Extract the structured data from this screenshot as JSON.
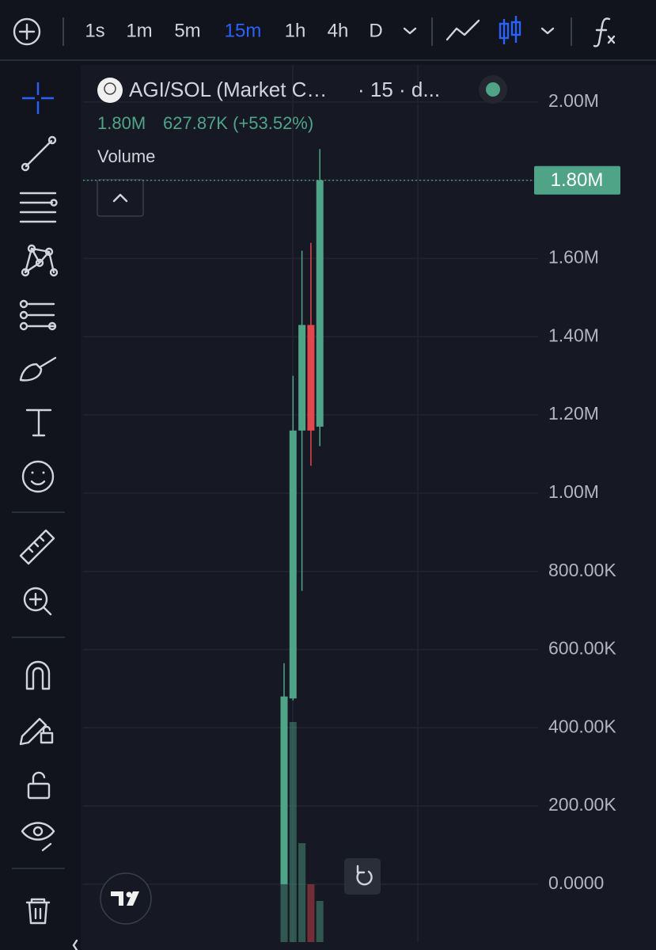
{
  "toolbar": {
    "intervals": [
      "1s",
      "1m",
      "5m",
      "15m",
      "1h",
      "4h",
      "D"
    ],
    "active": 3
  },
  "legend": {
    "symbol": "AGI/SOL (Market C…",
    "meta": "· 15 · d...",
    "price": "1.80M",
    "change": "627.87K (+53.52%)",
    "indicator": "Volume"
  },
  "chart_data": {
    "type": "candlestick",
    "categories": [
      null,
      null,
      null,
      null,
      null
    ],
    "open": [
      0,
      475000,
      1160000,
      1430000,
      1170000
    ],
    "high": [
      565000,
      1300000,
      1620000,
      1640000,
      1880000
    ],
    "low": [
      0,
      470000,
      750000,
      1070000,
      1120000
    ],
    "close": [
      480000,
      1160000,
      1430000,
      1160000,
      1800000
    ],
    "up_color": "#4fa487",
    "down_color": "#e2474b",
    "volume": [
      92,
      278,
      125,
      73,
      52
    ],
    "volume_ylim": [
      0,
      1108
    ],
    "ylim": [
      -148000,
      2095000
    ],
    "yticks": [
      {
        "value": 0,
        "label": "0.0000"
      },
      {
        "value": 200000,
        "label": "200.00K"
      },
      {
        "value": 400000,
        "label": "400.00K"
      },
      {
        "value": 600000,
        "label": "600.00K"
      },
      {
        "value": 800000,
        "label": "800.00K"
      },
      {
        "value": 1000000,
        "label": "1.00M"
      },
      {
        "value": 1200000,
        "label": "1.20M"
      },
      {
        "value": 1400000,
        "label": "1.40M"
      },
      {
        "value": 1600000,
        "label": "1.60M"
      },
      {
        "value": 1800000,
        "label": "1.80M"
      },
      {
        "value": 2000000,
        "label": "2.00M"
      }
    ],
    "last_price": {
      "value": 1800000,
      "label": "1.80M"
    },
    "grid": true
  }
}
